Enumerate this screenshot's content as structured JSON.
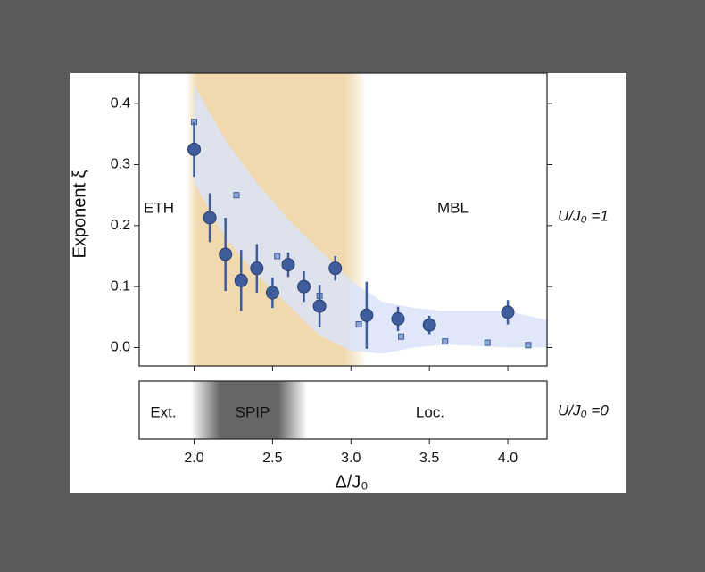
{
  "chart_data": {
    "type": "scatter",
    "y_label": "Exponent ξ",
    "x_label": "Δ/J₀",
    "xlim": [
      1.65,
      4.25
    ],
    "ylim": [
      -0.03,
      0.45
    ],
    "xticks": [
      {
        "value": 2,
        "label": "2.0"
      },
      {
        "value": 2.5,
        "label": "2.5"
      },
      {
        "value": 3,
        "label": "3.0"
      },
      {
        "value": 3.5,
        "label": "3.5"
      },
      {
        "value": 4,
        "label": "4.0"
      }
    ],
    "yticks": [
      {
        "value": 0,
        "label": "0.0"
      },
      {
        "value": 0.1,
        "label": "0.1"
      },
      {
        "value": 0.2,
        "label": "0.2"
      },
      {
        "value": 0.3,
        "label": "0.3"
      },
      {
        "value": 0.4,
        "label": "0.4"
      }
    ],
    "annotations": [
      "ETH",
      "MBL"
    ],
    "right_label": "U/J₀ =1",
    "shaded_region": {
      "color": "#f0d9ae",
      "range": [
        1.95,
        3.1
      ]
    },
    "band": {
      "color": "#d9e3f7",
      "x": [
        2.0,
        2.2,
        2.4,
        2.6,
        2.8,
        3.0,
        3.2,
        3.4,
        3.6,
        4.0,
        4.25
      ],
      "upper": [
        0.43,
        0.34,
        0.27,
        0.21,
        0.16,
        0.11,
        0.075,
        0.065,
        0.06,
        0.06,
        0.045
      ],
      "lower": [
        0.27,
        0.18,
        0.12,
        0.07,
        0.02,
        -0.005,
        -0.01,
        0.0,
        0.005,
        0.0,
        0.0
      ]
    },
    "series": [
      {
        "color": "#3f5c9c",
        "x": [
          2.0,
          2.1,
          2.2,
          2.3,
          2.4,
          2.5,
          2.6,
          2.7,
          2.8,
          2.9,
          3.1,
          3.3,
          3.5,
          4.0
        ],
        "values": [
          0.325,
          0.213,
          0.153,
          0.11,
          0.13,
          0.09,
          0.136,
          0.1,
          0.068,
          0.13,
          0.053,
          0.047,
          0.037,
          0.058
        ],
        "errors": [
          0.045,
          0.04,
          0.06,
          0.05,
          0.04,
          0.025,
          0.02,
          0.025,
          0.035,
          0.02,
          0.055,
          0.02,
          0.015,
          0.02
        ]
      },
      {
        "color": "#8ea5d6",
        "x": [
          2.0,
          2.27,
          2.53,
          2.8,
          3.05,
          3.32,
          3.6,
          3.87,
          4.13
        ],
        "values": [
          0.37,
          0.25,
          0.15,
          0.085,
          0.038,
          0.018,
          0.01,
          0.008,
          0.004
        ]
      }
    ],
    "lower_panel": {
      "labels": [
        "Ext.",
        "SPIP",
        "Loc."
      ],
      "right_label": "U/J₀ =0",
      "shaded_region": {
        "color": "#555555",
        "range": [
          1.98,
          2.72
        ]
      }
    }
  }
}
